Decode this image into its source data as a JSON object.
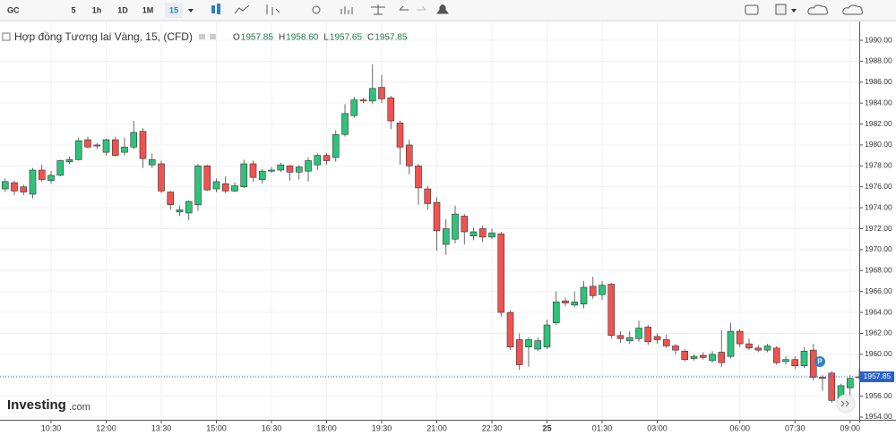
{
  "toolbar": {
    "symbol": "GC",
    "intervals": [
      "5",
      "1h",
      "1D",
      "1M",
      "15"
    ]
  },
  "logo": {
    "name": "Investing",
    "suffix": ".com"
  },
  "badge": "P",
  "chart_data": {
    "type": "candlestick",
    "title": "Hợp đồng Tương lai Vàng, 15, (CFD)",
    "ohlc": [
      {
        "key": "O",
        "value": "1957.85"
      },
      {
        "key": "H",
        "value": "1958.60"
      },
      {
        "key": "L",
        "value": "1957.65"
      },
      {
        "key": "C",
        "value": "1957.85"
      }
    ],
    "categories": [
      null,
      null,
      null,
      null,
      null,
      "10:30",
      null,
      null,
      null,
      null,
      null,
      "12:00",
      null,
      null,
      null,
      null,
      null,
      "13:30",
      null,
      null,
      null,
      null,
      null,
      "15:00",
      null,
      null,
      null,
      null,
      null,
      "16:30",
      null,
      null,
      null,
      null,
      null,
      "18:00",
      null,
      null,
      null,
      null,
      null,
      "19:30",
      null,
      null,
      null,
      null,
      null,
      "21:00",
      null,
      null,
      null,
      null,
      null,
      "22:30",
      null,
      null,
      null,
      null,
      null,
      "25",
      null,
      null,
      null,
      null,
      null,
      "01:30",
      null,
      null,
      null,
      null,
      null,
      "03:00",
      null,
      null,
      null,
      null,
      null,
      null,
      null,
      null,
      "06:00",
      null,
      null,
      null,
      null,
      null,
      "07:30",
      null,
      null,
      null,
      null,
      null,
      "09:00",
      null
    ],
    "open": [
      1975.8,
      1976.4,
      1976.0,
      1975.3,
      1977.6,
      1976.6,
      1977.1,
      1978.4,
      1978.6,
      1980.5,
      1980.0,
      1979.3,
      1980.5,
      1979.3,
      1979.8,
      1981.3,
      1978.1,
      1978.2,
      1975.5,
      1973.6,
      1973.5,
      1974.3,
      1978.0,
      1975.8,
      1976.3,
      1975.6,
      1976.0,
      1978.2,
      1976.7,
      1977.5,
      1977.6,
      1978.0,
      1977.4,
      1977.5,
      1978.1,
      1979.0,
      1978.8,
      1981.0,
      1982.8,
      1984.3,
      1984.2,
      1985.5,
      1984.5,
      1982.1,
      1980.0,
      1978.0,
      1975.8,
      1974.5,
      1970.5,
      1971.0,
      1973.2,
      1971.3,
      1972.0,
      1971.2,
      1971.5,
      1964.0,
      1961.4,
      1960.7,
      1960.5,
      1960.7,
      1963.0,
      1965.1,
      1964.7,
      1964.8,
      1966.5,
      1965.7,
      1966.7,
      1961.8,
      1961.3,
      1961.5,
      1962.6,
      1961.7,
      1961.4,
      1960.8,
      1960.3,
      1959.6,
      1959.9,
      1959.4,
      1960.2,
      1959.8,
      1962.2,
      1961.0,
      1960.6,
      1960.4,
      1960.6,
      1959.3,
      1959.5,
      1958.9,
      1960.4,
      1957.8,
      1958.2,
      1955.6,
      1956.8,
      1957.85
    ],
    "high": [
      1976.8,
      1976.6,
      1976.2,
      1977.8,
      1978.1,
      1977.5,
      1978.6,
      1978.9,
      1980.7,
      1980.8,
      1980.2,
      1980.6,
      1980.8,
      1980.7,
      1982.3,
      1981.6,
      1979.2,
      1978.5,
      1975.6,
      1974.2,
      1974.7,
      1978.2,
      1978.1,
      1976.8,
      1977.0,
      1976.4,
      1978.6,
      1978.5,
      1977.7,
      1977.9,
      1978.3,
      1978.1,
      1978.1,
      1978.8,
      1979.2,
      1979.2,
      1981.4,
      1983.9,
      1984.6,
      1984.5,
      1987.7,
      1986.7,
      1984.7,
      1982.3,
      1980.5,
      1978.2,
      1976.1,
      1975.0,
      1972.9,
      1974.2,
      1973.4,
      1972.1,
      1972.3,
      1972.0,
      1971.7,
      1964.2,
      1962.0,
      1961.6,
      1961.6,
      1963.3,
      1966.0,
      1965.4,
      1966.0,
      1967.0,
      1967.4,
      1967.0,
      1966.8,
      1962.2,
      1962.2,
      1963.2,
      1962.8,
      1962.0,
      1961.9,
      1961.0,
      1960.5,
      1960.0,
      1960.2,
      1960.3,
      1962.3,
      1963.0,
      1962.4,
      1961.5,
      1960.9,
      1961.0,
      1960.8,
      1959.8,
      1959.8,
      1960.7,
      1961.0,
      1958.0,
      1958.4,
      1957.2,
      1958.0,
      1958.6
    ],
    "low": [
      1975.5,
      1975.2,
      1975.2,
      1974.9,
      1976.5,
      1976.3,
      1977.0,
      1978.2,
      1978.5,
      1979.7,
      1979.6,
      1979.0,
      1978.9,
      1979.0,
      1979.6,
      1977.8,
      1977.8,
      1975.4,
      1973.8,
      1973.2,
      1972.8,
      1973.7,
      1975.6,
      1975.5,
      1975.4,
      1975.5,
      1975.9,
      1976.5,
      1976.3,
      1977.3,
      1977.4,
      1976.6,
      1976.7,
      1976.5,
      1977.6,
      1978.1,
      1978.4,
      1980.8,
      1982.6,
      1984.0,
      1983.9,
      1984.0,
      1981.5,
      1978.1,
      1977.2,
      1974.3,
      1973.8,
      1969.9,
      1969.5,
      1970.6,
      1970.5,
      1970.9,
      1970.7,
      1971.0,
      1963.6,
      1960.4,
      1958.5,
      1958.8,
      1960.3,
      1960.5,
      1962.8,
      1964.6,
      1964.5,
      1964.4,
      1965.3,
      1965.2,
      1961.5,
      1961.1,
      1961.0,
      1961.2,
      1960.9,
      1961.0,
      1960.6,
      1960.0,
      1959.3,
      1959.4,
      1959.5,
      1959.2,
      1958.8,
      1959.6,
      1960.7,
      1960.4,
      1960.2,
      1960.2,
      1959.0,
      1959.0,
      1958.6,
      1958.7,
      1957.5,
      1956.5,
      1955.4,
      1955.4,
      1956.1,
      1957.65
    ],
    "close": [
      1976.5,
      1975.6,
      1975.5,
      1977.6,
      1976.7,
      1977.1,
      1978.5,
      1978.6,
      1980.4,
      1979.8,
      1979.9,
      1980.5,
      1979.0,
      1979.8,
      1981.2,
      1978.7,
      1978.6,
      1975.6,
      1974.3,
      1973.8,
      1974.6,
      1978.0,
      1975.7,
      1976.5,
      1975.6,
      1976.1,
      1978.2,
      1976.9,
      1977.5,
      1977.6,
      1978.1,
      1977.4,
      1977.9,
      1978.5,
      1979.0,
      1978.5,
      1981.0,
      1983.0,
      1984.3,
      1984.2,
      1985.4,
      1984.4,
      1982.3,
      1979.8,
      1978.0,
      1975.9,
      1974.4,
      1971.8,
      1972.0,
      1973.4,
      1971.7,
      1971.7,
      1971.2,
      1971.6,
      1964.0,
      1960.7,
      1959.0,
      1961.4,
      1961.3,
      1962.8,
      1965.0,
      1964.9,
      1965.0,
      1966.4,
      1965.6,
      1966.6,
      1961.8,
      1961.5,
      1961.6,
      1962.5,
      1961.2,
      1961.4,
      1960.8,
      1960.4,
      1959.5,
      1959.8,
      1959.7,
      1960.0,
      1959.2,
      1962.2,
      1961.0,
      1960.6,
      1960.4,
      1960.8,
      1959.2,
      1959.5,
      1958.9,
      1960.3,
      1957.8,
      1957.7,
      1955.6,
      1957.0,
      1957.7,
      1957.85
    ],
    "up_color": "#2fc27a",
    "down_color": "#ef5350",
    "last_price": 1957.85,
    "last_price_color": "#2962c9",
    "ylim": [
      1953.2,
      1991.3
    ],
    "yticks": [
      {
        "value": 1954,
        "label": "1954.00"
      },
      {
        "value": 1956,
        "label": "1956.00"
      },
      {
        "value": 1958,
        "label": "1958.00"
      },
      {
        "value": 1960,
        "label": "1960.00"
      },
      {
        "value": 1962,
        "label": "1962.00"
      },
      {
        "value": 1964,
        "label": "1964.00"
      },
      {
        "value": 1966,
        "label": "1966.00"
      },
      {
        "value": 1968,
        "label": "1968.00"
      },
      {
        "value": 1970,
        "label": "1970.00"
      },
      {
        "value": 1972,
        "label": "1972.00"
      },
      {
        "value": 1974,
        "label": "1974.00"
      },
      {
        "value": 1976,
        "label": "1976.00"
      },
      {
        "value": 1978,
        "label": "1978.00"
      },
      {
        "value": 1980,
        "label": "1980.00"
      },
      {
        "value": 1982,
        "label": "1982.00"
      },
      {
        "value": 1984,
        "label": "1984.00"
      },
      {
        "value": 1986,
        "label": "1986.00"
      },
      {
        "value": 1988,
        "label": "1988.00"
      },
      {
        "value": 1990,
        "label": "1990.00"
      }
    ],
    "grid": true
  }
}
